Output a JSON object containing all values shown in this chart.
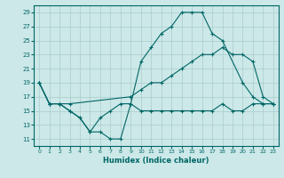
{
  "xlabel": "Humidex (Indice chaleur)",
  "background_color": "#cce8e8",
  "line_color": "#006666",
  "grid_color": "#aacccc",
  "xlim": [
    -0.5,
    23.5
  ],
  "ylim": [
    10,
    30
  ],
  "yticks": [
    11,
    13,
    15,
    17,
    19,
    21,
    23,
    25,
    27,
    29
  ],
  "xticks": [
    0,
    1,
    2,
    3,
    4,
    5,
    6,
    7,
    8,
    9,
    10,
    11,
    12,
    13,
    14,
    15,
    16,
    17,
    18,
    19,
    20,
    21,
    22,
    23
  ],
  "line1_x": [
    0,
    1,
    2,
    3,
    4,
    5,
    6,
    7,
    8,
    9,
    10,
    11,
    12,
    13,
    14,
    15,
    16,
    17,
    18,
    20,
    21,
    22,
    23
  ],
  "line1_y": [
    19,
    16,
    16,
    15,
    14,
    12,
    12,
    11,
    11,
    16,
    22,
    24,
    26,
    27,
    29,
    29,
    29,
    26,
    25,
    19,
    17,
    16,
    16
  ],
  "line2_x": [
    0,
    1,
    2,
    3,
    9,
    10,
    11,
    12,
    13,
    14,
    15,
    16,
    17,
    18,
    19,
    20,
    21,
    22,
    23
  ],
  "line2_y": [
    19,
    16,
    16,
    16,
    17,
    18,
    19,
    19,
    20,
    21,
    22,
    23,
    23,
    24,
    23,
    23,
    22,
    17,
    16
  ],
  "line3_x": [
    0,
    1,
    2,
    3,
    4,
    5,
    6,
    7,
    8,
    9,
    10,
    11,
    12,
    13,
    14,
    15,
    16,
    17,
    18,
    19,
    20,
    21,
    22,
    23
  ],
  "line3_y": [
    19,
    16,
    16,
    15,
    14,
    12,
    14,
    15,
    16,
    16,
    15,
    15,
    15,
    15,
    15,
    15,
    15,
    15,
    16,
    15,
    15,
    16,
    16,
    16
  ]
}
